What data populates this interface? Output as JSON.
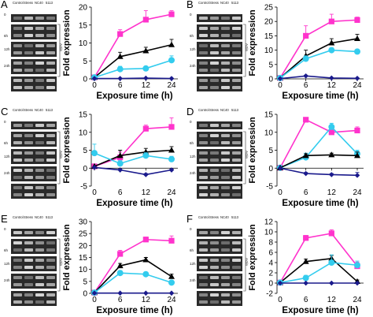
{
  "figure": {
    "gel_columns": [
      "Control",
      "Stress",
      "NC40",
      "5113"
    ],
    "gel_rows": [
      "0",
      "6h",
      "12h",
      "24h"
    ],
    "actin_label": "Actin"
  },
  "colors": {
    "magenta": "#ff33cc",
    "cyan": "#33ccee",
    "black": "#000000",
    "navy": "#1a1a8c"
  },
  "chart_data": [
    {
      "panel": "A",
      "type": "line",
      "x": [
        0,
        6,
        12,
        24
      ],
      "xticks": [
        "0",
        "6",
        "12",
        "24"
      ],
      "ylim": [
        0,
        20
      ],
      "yticks": [
        0,
        5,
        10,
        15,
        20
      ],
      "xlabel": "Exposure time (h)",
      "ylabel": "Fold expression",
      "series": [
        {
          "color": "magenta",
          "marker": "square",
          "values": [
            0.4,
            12.5,
            16.5,
            18.0
          ],
          "errors": [
            0,
            1.2,
            2.5,
            1.0
          ]
        },
        {
          "color": "black",
          "marker": "triangle",
          "values": [
            0.4,
            6.2,
            7.8,
            9.5
          ],
          "errors": [
            0,
            1.2,
            1.0,
            1.5
          ]
        },
        {
          "color": "cyan",
          "marker": "circle",
          "values": [
            0.4,
            2.7,
            2.9,
            5.2
          ],
          "errors": [
            0,
            0.8,
            0.6,
            1.2
          ]
        },
        {
          "color": "navy",
          "marker": "diamond",
          "values": [
            0.1,
            0.1,
            0.2,
            0.1
          ],
          "errors": [
            0,
            0,
            0,
            0
          ]
        }
      ]
    },
    {
      "panel": "B",
      "type": "line",
      "x": [
        0,
        6,
        12,
        24
      ],
      "xticks": [
        "0",
        "6",
        "12",
        "24"
      ],
      "ylim": [
        0,
        25
      ],
      "yticks": [
        0,
        5,
        10,
        15,
        20,
        25
      ],
      "xlabel": "Exposure time (h)",
      "ylabel": "Fold expression",
      "series": [
        {
          "color": "magenta",
          "marker": "square",
          "values": [
            0.3,
            15.0,
            20.0,
            20.5
          ],
          "errors": [
            0,
            3.5,
            2.5,
            1.0
          ]
        },
        {
          "color": "black",
          "marker": "triangle",
          "values": [
            0.3,
            8.0,
            12.5,
            14.0
          ],
          "errors": [
            0,
            2.0,
            1.5,
            1.5
          ]
        },
        {
          "color": "cyan",
          "marker": "circle",
          "values": [
            0.3,
            7.0,
            10.0,
            9.5
          ],
          "errors": [
            0,
            1.0,
            0.8,
            0.8
          ]
        },
        {
          "color": "navy",
          "marker": "diamond",
          "values": [
            0.1,
            1.0,
            0.3,
            0.2
          ],
          "errors": [
            0,
            0.3,
            0,
            0
          ]
        }
      ]
    },
    {
      "panel": "C",
      "type": "line",
      "x": [
        0,
        6,
        12,
        24
      ],
      "xticks": [
        "0",
        "6",
        "12",
        "24"
      ],
      "ylim": [
        -5,
        15
      ],
      "yticks": [
        -5,
        0,
        5,
        10,
        15
      ],
      "xlabel": "Exposure time (h)",
      "ylabel": "Fold expression",
      "series": [
        {
          "color": "magenta",
          "marker": "square",
          "values": [
            0.5,
            3.0,
            11.0,
            11.5
          ],
          "errors": [
            0,
            1.5,
            1.0,
            2.5
          ]
        },
        {
          "color": "black",
          "marker": "triangle",
          "values": [
            0.5,
            3.5,
            4.5,
            5.0
          ],
          "errors": [
            0,
            1.5,
            1.0,
            1.0
          ]
        },
        {
          "color": "cyan",
          "marker": "circle",
          "values": [
            4.2,
            1.3,
            3.5,
            2.5
          ],
          "errors": [
            2.5,
            0.8,
            0.8,
            0.8
          ]
        },
        {
          "color": "navy",
          "marker": "diamond",
          "values": [
            0.2,
            -0.5,
            -1.8,
            -0.5
          ],
          "errors": [
            0,
            0.3,
            0.3,
            0.3
          ]
        }
      ]
    },
    {
      "panel": "D",
      "type": "line",
      "x": [
        0,
        6,
        12,
        24
      ],
      "xticks": [
        "0",
        "6",
        "12",
        "24"
      ],
      "ylim": [
        -5,
        15
      ],
      "yticks": [
        -5,
        0,
        5,
        10,
        15
      ],
      "xlabel": "Exposure time (h)",
      "ylabel": "Fold expression",
      "series": [
        {
          "color": "magenta",
          "marker": "square",
          "values": [
            0.1,
            13.5,
            10.0,
            10.5
          ],
          "errors": [
            0,
            0.5,
            1.0,
            1.0
          ]
        },
        {
          "color": "cyan",
          "marker": "circle",
          "values": [
            0.1,
            3.0,
            11.5,
            4.0
          ],
          "errors": [
            0,
            1.2,
            1.0,
            1.0
          ]
        },
        {
          "color": "black",
          "marker": "triangle",
          "values": [
            0.1,
            3.5,
            3.7,
            3.5
          ],
          "errors": [
            0,
            0.5,
            0.5,
            1.0
          ]
        },
        {
          "color": "navy",
          "marker": "diamond",
          "values": [
            0.0,
            -1.5,
            -1.8,
            -2.0
          ],
          "errors": [
            0,
            0.3,
            0.3,
            0.8
          ]
        }
      ]
    },
    {
      "panel": "E",
      "type": "line",
      "x": [
        0,
        6,
        12,
        24
      ],
      "xticks": [
        "0",
        "6",
        "12",
        "24"
      ],
      "ylim": [
        0,
        30
      ],
      "yticks": [
        0,
        5,
        10,
        15,
        20,
        25,
        30
      ],
      "xlabel": "Exposure time (h)",
      "ylabel": "Fold expression",
      "series": [
        {
          "color": "magenta",
          "marker": "square",
          "values": [
            0.3,
            16.5,
            22.5,
            22.0
          ],
          "errors": [
            0,
            1.5,
            1.0,
            2.0
          ]
        },
        {
          "color": "black",
          "marker": "triangle",
          "values": [
            0.3,
            11.5,
            14.0,
            7.0
          ],
          "errors": [
            0,
            1.0,
            1.0,
            1.0
          ]
        },
        {
          "color": "cyan",
          "marker": "circle",
          "values": [
            0.3,
            8.5,
            8.0,
            4.5
          ],
          "errors": [
            0,
            1.0,
            0.8,
            0.8
          ]
        },
        {
          "color": "navy",
          "marker": "diamond",
          "values": [
            0.1,
            0.1,
            0.1,
            0.1
          ],
          "errors": [
            0,
            0,
            0,
            0
          ]
        }
      ]
    },
    {
      "panel": "F",
      "type": "line",
      "x": [
        0,
        6,
        12,
        24
      ],
      "xticks": [
        "0",
        "6",
        "12",
        "24"
      ],
      "ylim": [
        -2,
        12
      ],
      "yticks": [
        -2,
        0,
        2,
        4,
        6,
        8,
        10,
        12
      ],
      "xlabel": "Exposure time (h)",
      "ylabel": "Fold expression",
      "series": [
        {
          "color": "magenta",
          "marker": "square",
          "values": [
            0.1,
            8.8,
            9.7,
            3.3
          ],
          "errors": [
            0,
            0.5,
            0.7,
            0.8
          ]
        },
        {
          "color": "black",
          "marker": "triangle",
          "values": [
            0.1,
            4.2,
            4.8,
            0.3
          ],
          "errors": [
            0,
            0.5,
            0.6,
            0.3
          ]
        },
        {
          "color": "cyan",
          "marker": "circle",
          "values": [
            0.1,
            1.0,
            4.0,
            3.5
          ],
          "errors": [
            0,
            0.5,
            1.5,
            0.8
          ]
        },
        {
          "color": "navy",
          "marker": "diamond",
          "values": [
            0.0,
            0.0,
            0.0,
            0.0
          ],
          "errors": [
            0,
            0,
            0,
            0
          ]
        }
      ]
    }
  ]
}
